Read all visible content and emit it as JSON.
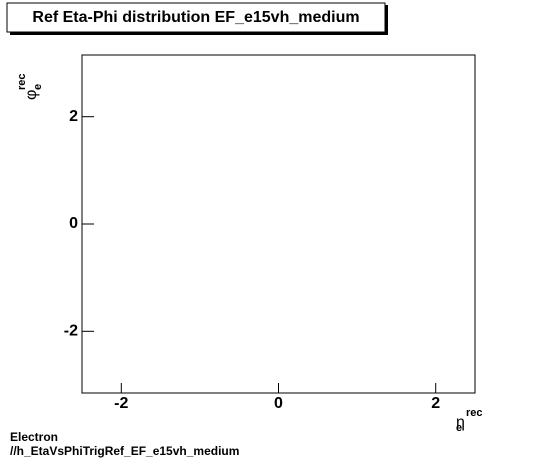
{
  "chart_data": {
    "type": "scatter",
    "title": "Ref Eta-Phi distribution EF_e15vh_medium",
    "x_label": "η",
    "x_label_sub": "e",
    "x_label_sup": "rec",
    "y_label": "φ",
    "y_label_sub": "e",
    "y_label_sup": "rec",
    "xlim": [
      -2.5,
      2.5
    ],
    "xticks": [
      -2,
      0,
      2
    ],
    "ylim": [
      -3.15,
      3.15
    ],
    "yticks": [
      -2,
      0,
      2
    ],
    "series": [],
    "footer": [
      "Electron",
      "//h_EtaVsPhiTrigRef_EF_e15vh_medium"
    ]
  }
}
